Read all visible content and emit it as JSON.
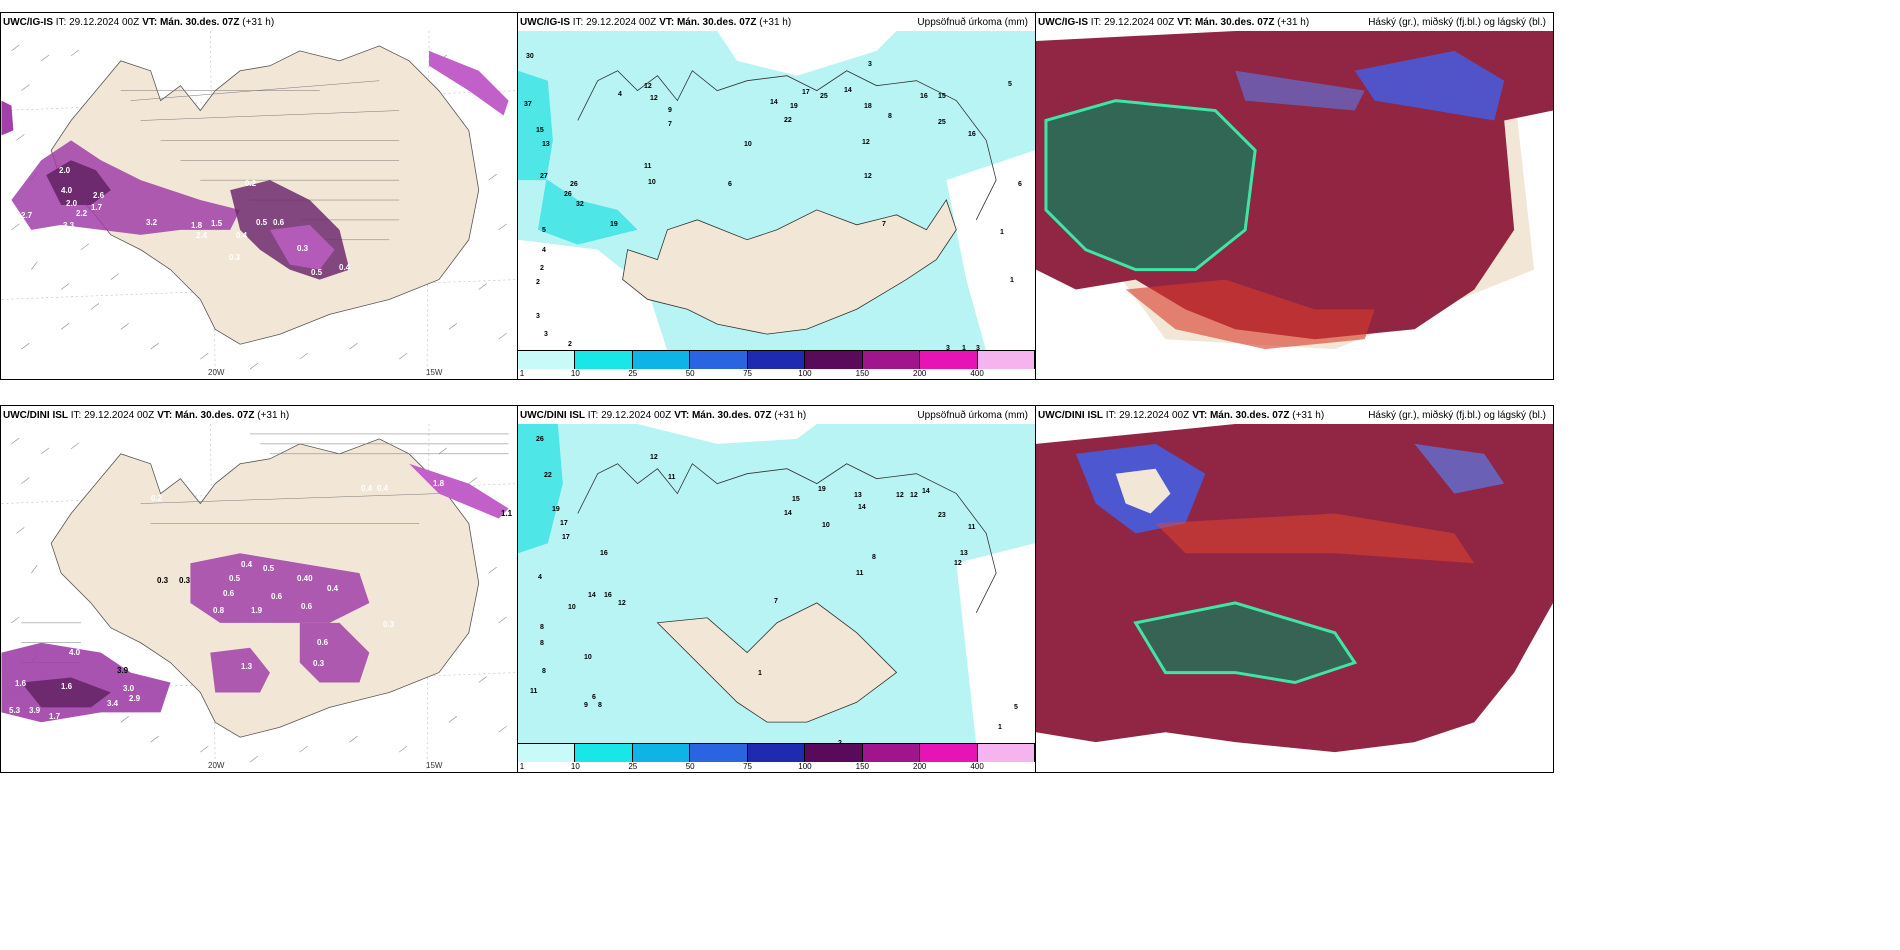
{
  "panels": [
    {
      "id": "p1",
      "model": "UWC/IG-IS",
      "it": "IT: 29.12.2024 00Z",
      "vt": "VT: Mán. 30.des. 07Z",
      "lead": "(+31 h)",
      "right_title": "",
      "lon_labels": [
        "20W",
        "15W"
      ]
    },
    {
      "id": "p2",
      "model": "UWC/IG-IS",
      "it": "IT: 29.12.2024 00Z",
      "vt": "VT: Mán. 30.des. 07Z",
      "lead": "(+31 h)",
      "right_title": "Uppsöfnuð úrkoma (mm)",
      "colorbar_ticks": [
        "1",
        "10",
        "25",
        "50",
        "75",
        "100",
        "150",
        "200",
        "400"
      ]
    },
    {
      "id": "p3",
      "model": "UWC/IG-IS",
      "it": "IT: 29.12.2024 00Z",
      "vt": "VT: Mán. 30.des. 07Z",
      "lead": "(+31 h)",
      "right_title": "Háský (gr.), miðský (fj.bl.) og lágský (bl.)"
    },
    {
      "id": "p4",
      "model": "UWC/DINI ISL",
      "it": "IT: 29.12.2024 00Z",
      "vt": "VT: Mán. 30.des. 07Z",
      "lead": "(+31 h)",
      "right_title": "",
      "lon_labels": [
        "20W",
        "15W"
      ]
    },
    {
      "id": "p5",
      "model": "UWC/DINI ISL",
      "it": "IT: 29.12.2024 00Z",
      "vt": "VT: Mán. 30.des. 07Z",
      "lead": "(+31 h)",
      "right_title": "Uppsöfnuð úrkoma (mm)",
      "colorbar_ticks": [
        "1",
        "10",
        "25",
        "50",
        "75",
        "100",
        "150",
        "200",
        "400"
      ]
    },
    {
      "id": "p6",
      "model": "UWC/DINI ISL",
      "it": "IT: 29.12.2024 00Z",
      "vt": "VT: Mán. 30.des. 07Z",
      "lead": "(+31 h)",
      "right_title": "Háský (gr.), miðský (fj.bl.) og lágský (bl.)"
    }
  ],
  "colorbar_colors": [
    "#c8fafa",
    "#19e6e6",
    "#0fb4e6",
    "#2b64e0",
    "#1e2ab0",
    "#5a0a5a",
    "#a0148c",
    "#e614b4",
    "#f5b4f0"
  ],
  "colors": {
    "land": "#f2e6d6",
    "precip_light": "#b8f4f4",
    "precip_mid": "#4ee6e6",
    "snow_dark": "#6e2a6e",
    "snow_mid": "#a040a8",
    "snow_light": "#d070d8",
    "cloud_high": "#8b1a3a",
    "cloud_mid": "#3a8a6a",
    "cloud_low": "#4a5ad8"
  },
  "p1_labels": [
    "2.0",
    "4.0",
    "2.6",
    "2.0",
    "1.7",
    "2.7",
    "3.3",
    "2.2",
    "3.2",
    "1.8",
    "1.5",
    "2.4",
    "0.4",
    "0.3",
    "0.5",
    "0.6",
    "0.3",
    "0.5",
    "0.4",
    "0.2",
    "1.4"
  ],
  "p2_labels": [
    "30",
    "37",
    "15",
    "13",
    "27",
    "26",
    "26",
    "32",
    "19",
    "5",
    "4",
    "2",
    "2",
    "3",
    "3",
    "2",
    "4",
    "12",
    "12",
    "9",
    "7",
    "11",
    "10",
    "6",
    "17",
    "14",
    "19",
    "22",
    "25",
    "14",
    "18",
    "16",
    "15",
    "25",
    "16",
    "12",
    "12",
    "10",
    "8",
    "7",
    "3",
    "5",
    "6",
    "1",
    "1",
    "3",
    "1",
    "3"
  ],
  "p4_labels": [
    "0.2",
    "0.4",
    "0.4",
    "1.8",
    "1.1",
    "0.5",
    "0.4",
    "0.5",
    "0.3",
    "0.3",
    "0.8",
    "0.6",
    "0.6",
    "0.6",
    "0.40",
    "0.4",
    "1.9",
    "1.3",
    "3.9",
    "4.0",
    "1.6",
    "3.4",
    "1.6",
    "5.3",
    "3.9",
    "1.7",
    "1.6",
    "2.9",
    "3.0",
    "1.4",
    "0.4",
    "0.3",
    "0.6",
    "0.3"
  ],
  "p5_labels": [
    "26",
    "22",
    "19",
    "17",
    "17",
    "16",
    "14",
    "16",
    "12",
    "4",
    "8",
    "10",
    "10",
    "8",
    "8",
    "6",
    "11",
    "9",
    "8",
    "12",
    "11",
    "15",
    "14",
    "19",
    "13",
    "14",
    "12",
    "12",
    "14",
    "23",
    "11",
    "13",
    "12",
    "10",
    "8",
    "11",
    "7",
    "1",
    "2",
    "1",
    "5",
    "3"
  ]
}
